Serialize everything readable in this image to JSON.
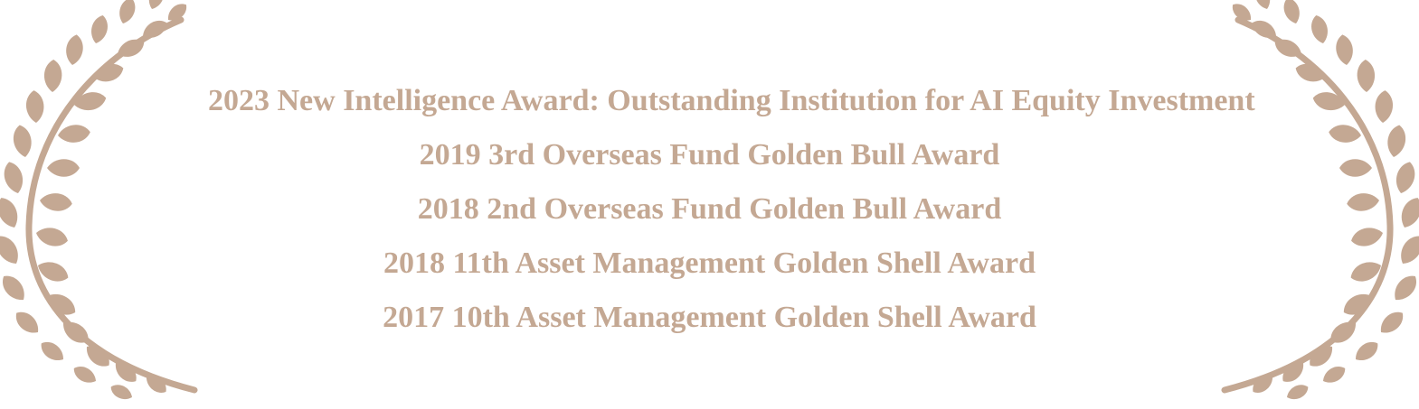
{
  "theme": {
    "accent": "#c4a893"
  },
  "decorations": {
    "left_icon": "laurel-branch-icon",
    "right_icon": "laurel-branch-icon"
  },
  "awards": [
    "2023 New Intelligence Award: Outstanding Institution for AI Equity Investment",
    "2019 3rd Overseas Fund Golden Bull Award",
    "2018 2nd Overseas Fund Golden Bull Award",
    "2018 11th Asset Management Golden Shell Award",
    "2017 10th Asset Management Golden Shell Award"
  ]
}
